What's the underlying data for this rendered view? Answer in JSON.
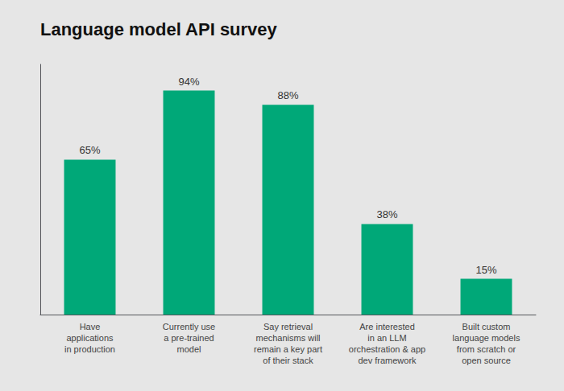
{
  "chart_data": {
    "type": "bar",
    "title": "Language model API survey",
    "categories": [
      "Have\napplications\nin production",
      "Currently use\na pre-trained\nmodel",
      "Say retrieval\nmechanisms will\nremain a key part\nof their stack",
      "Are interested\nin an LLM\norchestration & app\ndev framework",
      "Built custom\nlanguage models\nfrom scratch or\nopen source"
    ],
    "values": [
      65,
      94,
      88,
      38,
      15
    ],
    "value_labels": [
      "65%",
      "94%",
      "88%",
      "38%",
      "15%"
    ],
    "data_labels": true,
    "color": "#00a878",
    "ylim": [
      0,
      105
    ],
    "yticks": [],
    "grid": false,
    "tick_labels": "x"
  }
}
